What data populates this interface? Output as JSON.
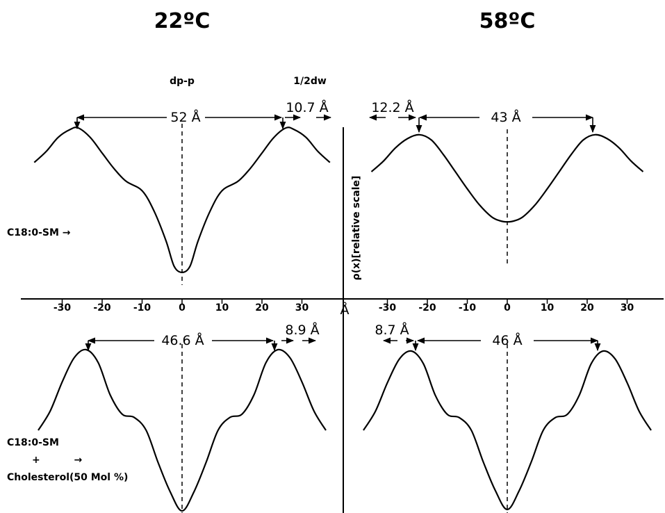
{
  "header": {
    "left_temp": "22ºC",
    "right_temp": "58ºC",
    "dpp_label": "dp-p",
    "halfdw_label": "1/2dw",
    "y_axis_label": "ρ(x)[relative scale]",
    "x_unit": "Å"
  },
  "row_labels": {
    "top": "C18:0-SM →",
    "bottom_line1": "C18:0-SM",
    "bottom_line2": "+          →",
    "bottom_line3": "Cholesterol(50 Mol %)"
  },
  "chart_data": [
    {
      "type": "line",
      "panel": "top-left",
      "temperature": "22ºC",
      "sample": "C18:0-SM",
      "xlim": [
        -38,
        38
      ],
      "ticks": [
        -30,
        -20,
        -10,
        0,
        10,
        20,
        30
      ],
      "tick_labels": [
        "-30",
        "-20",
        "-10",
        "0",
        "10",
        "20",
        "30"
      ],
      "x": [
        -37,
        -34,
        -31,
        -28,
        -26,
        -23,
        -20,
        -17,
        -14,
        -10,
        -7,
        -4,
        -2,
        0,
        2,
        4,
        7,
        10,
        14,
        17,
        20,
        23,
        26,
        28,
        31,
        34,
        37
      ],
      "y": [
        0.78,
        0.85,
        0.94,
        0.99,
        1.0,
        0.94,
        0.84,
        0.74,
        0.66,
        0.6,
        0.47,
        0.28,
        0.12,
        0.08,
        0.12,
        0.28,
        0.47,
        0.6,
        0.66,
        0.74,
        0.84,
        0.94,
        1.0,
        0.99,
        0.94,
        0.85,
        0.78
      ],
      "annotations": [
        "52 Å",
        "10.7 Å"
      ],
      "peak_positions": [
        -26,
        26
      ]
    },
    {
      "type": "line",
      "panel": "top-right",
      "temperature": "58ºC",
      "sample": "C18:0-SM",
      "xlim": [
        -38,
        38
      ],
      "ticks": [
        -30,
        -20,
        -10,
        0,
        10,
        20,
        30
      ],
      "tick_labels": [
        "-30",
        "-20",
        "-10",
        "0",
        "10",
        "20",
        "30"
      ],
      "x": [
        -34,
        -31,
        -28,
        -25,
        -22,
        -19,
        -16,
        -13,
        -10,
        -7,
        -4,
        -2,
        0,
        2,
        4,
        7,
        10,
        13,
        16,
        19,
        22,
        25,
        28,
        31,
        34
      ],
      "y": [
        0.7,
        0.78,
        0.88,
        0.95,
        0.98,
        0.94,
        0.83,
        0.7,
        0.57,
        0.45,
        0.36,
        0.33,
        0.32,
        0.33,
        0.36,
        0.45,
        0.57,
        0.7,
        0.83,
        0.94,
        0.98,
        0.95,
        0.88,
        0.78,
        0.7
      ],
      "annotations": [
        "12.2 Å",
        "43 Å"
      ],
      "peak_positions": [
        -22,
        21
      ]
    },
    {
      "type": "line",
      "panel": "bottom-left",
      "temperature": "22ºC",
      "sample": "C18:0-SM + Cholesterol(50 Mol %)",
      "xlim": [
        -38,
        38
      ],
      "x": [
        -36,
        -33,
        -30,
        -27,
        -24,
        -21,
        -18,
        -15,
        -12,
        -9,
        -6,
        -3,
        0,
        3,
        6,
        9,
        12,
        15,
        18,
        21,
        24,
        27,
        30,
        33,
        36
      ],
      "y": [
        0.5,
        0.62,
        0.8,
        0.95,
        1.0,
        0.92,
        0.72,
        0.6,
        0.58,
        0.5,
        0.3,
        0.12,
        0.0,
        0.12,
        0.3,
        0.5,
        0.58,
        0.6,
        0.72,
        0.92,
        1.0,
        0.95,
        0.8,
        0.62,
        0.5
      ],
      "annotations": [
        "46.6 Å",
        "8.9 Å"
      ],
      "peak_positions": [
        -23.5,
        23
      ]
    },
    {
      "type": "line",
      "panel": "bottom-right",
      "temperature": "58ºC",
      "sample": "C18:0-SM + Cholesterol(50 Mol %)",
      "xlim": [
        -38,
        38
      ],
      "x": [
        -36,
        -33,
        -30,
        -27,
        -24,
        -21,
        -18,
        -15,
        -12,
        -9,
        -6,
        -3,
        0,
        3,
        6,
        9,
        12,
        15,
        18,
        21,
        24,
        27,
        30,
        33,
        36
      ],
      "y": [
        0.5,
        0.62,
        0.8,
        0.95,
        1.0,
        0.92,
        0.72,
        0.6,
        0.58,
        0.5,
        0.3,
        0.12,
        0.0,
        0.12,
        0.3,
        0.5,
        0.58,
        0.6,
        0.72,
        0.92,
        1.0,
        0.95,
        0.8,
        0.62,
        0.5
      ],
      "annotations": [
        "8.7 Å",
        "46 Å"
      ],
      "peak_positions": [
        -23,
        23
      ]
    }
  ]
}
